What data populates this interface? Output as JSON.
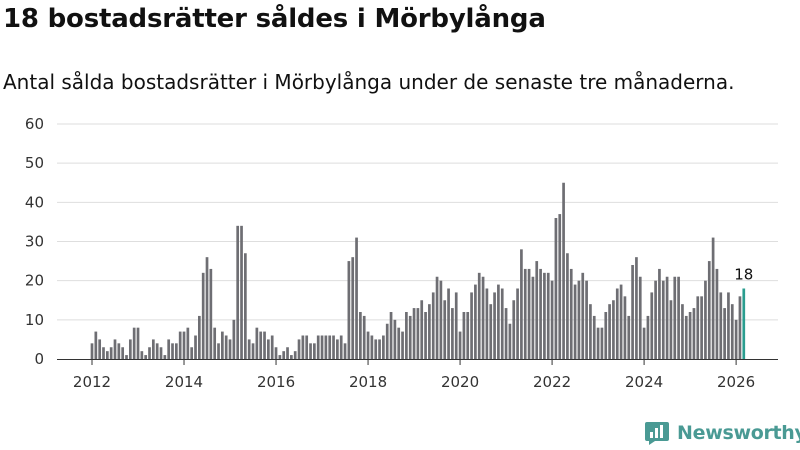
{
  "header": {
    "title": "18 bostadsrätter såldes i Mörbylånga",
    "subtitle": "Antal sålda bostadsrätter i Mörbylånga under de senaste tre månaderna."
  },
  "brand": {
    "name": "Newsworthy",
    "logo_icon": "newsworthy-logo-icon",
    "color": "#4a9a94"
  },
  "chart_data": {
    "type": "bar",
    "title": "18 bostadsrätter såldes i Mörbylånga",
    "subtitle": "Antal sålda bostadsrätter i Mörbylånga under de senaste tre månaderna.",
    "xlabel": "",
    "ylabel": "",
    "ylim": [
      0,
      60
    ],
    "yticks": [
      0,
      10,
      20,
      30,
      40,
      50,
      60
    ],
    "xticks": [
      2012,
      2014,
      2016,
      2018,
      2020,
      2022,
      2024,
      2026
    ],
    "grid": true,
    "start": "2012-01",
    "frequency": "monthly",
    "bar_color": "#6e6e73",
    "highlight_color": "#2a9d8f",
    "highlight_last": true,
    "last_label": "18",
    "values": [
      4,
      7,
      5,
      3,
      2,
      3,
      5,
      4,
      3,
      1,
      5,
      8,
      8,
      2,
      1,
      3,
      5,
      4,
      3,
      1,
      5,
      4,
      4,
      7,
      7,
      8,
      3,
      6,
      11,
      22,
      26,
      23,
      8,
      4,
      7,
      6,
      5,
      10,
      34,
      34,
      27,
      5,
      4,
      8,
      7,
      7,
      5,
      6,
      3,
      1,
      2,
      3,
      1,
      2,
      5,
      6,
      6,
      4,
      4,
      6,
      6,
      6,
      6,
      6,
      5,
      6,
      4,
      25,
      26,
      31,
      12,
      11,
      7,
      6,
      5,
      5,
      6,
      9,
      12,
      10,
      8,
      7,
      12,
      11,
      13,
      13,
      15,
      12,
      14,
      17,
      21,
      20,
      15,
      18,
      13,
      17,
      7,
      12,
      12,
      17,
      19,
      22,
      21,
      18,
      14,
      17,
      19,
      18,
      13,
      9,
      15,
      18,
      28,
      23,
      23,
      21,
      25,
      23,
      22,
      22,
      20,
      36,
      37,
      45,
      27,
      23,
      19,
      20,
      22,
      20,
      14,
      11,
      8,
      8,
      12,
      14,
      15,
      18,
      19,
      16,
      11,
      24,
      26,
      21,
      8,
      11,
      17,
      20,
      23,
      20,
      21,
      15,
      21,
      21,
      14,
      11,
      12,
      13,
      16,
      16,
      20,
      25,
      31,
      23,
      17,
      13,
      17,
      14,
      10,
      16,
      18
    ]
  }
}
